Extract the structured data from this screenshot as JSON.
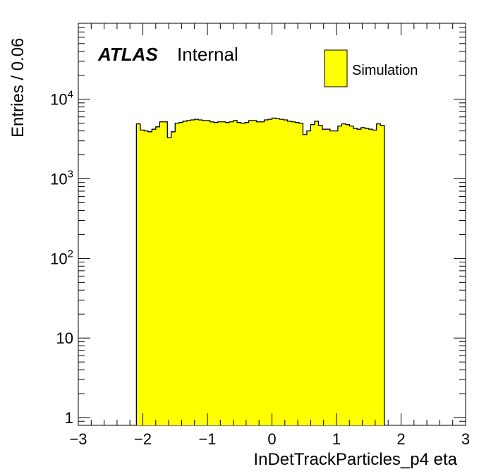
{
  "chart_data": {
    "type": "bar",
    "style": "histogram",
    "xlabel": "InDetTrackParticles_p4 eta",
    "ylabel": "Entries / 0.06",
    "xlim": [
      -3,
      3
    ],
    "ylim": [
      0.8,
      90000
    ],
    "log_y": true,
    "bin_width": 0.06,
    "x_ticks": [
      "−3",
      "−2",
      "−1",
      "0",
      "1",
      "2",
      "3"
    ],
    "x_tick_values": [
      -3,
      -2,
      -1,
      0,
      1,
      2,
      3
    ],
    "y_ticks": [
      {
        "value": 1,
        "base": "1",
        "exp": ""
      },
      {
        "value": 10,
        "base": "10",
        "exp": ""
      },
      {
        "value": 100,
        "base": "10",
        "exp": "2"
      },
      {
        "value": 1000,
        "base": "10",
        "exp": "3"
      },
      {
        "value": 10000,
        "base": "10",
        "exp": "4"
      }
    ],
    "bin_edges_start": -2.1,
    "values": [
      4900,
      4100,
      4000,
      3900,
      4200,
      4500,
      5200,
      5200,
      3300,
      3900,
      5000,
      5100,
      5300,
      5400,
      5500,
      5600,
      5500,
      5400,
      5400,
      5200,
      5100,
      5200,
      5200,
      5100,
      5200,
      5400,
      5100,
      5000,
      5100,
      5400,
      5400,
      5200,
      5200,
      5500,
      5600,
      5800,
      5700,
      5600,
      5500,
      5300,
      5200,
      5100,
      5000,
      3600,
      4000,
      4800,
      5300,
      4700,
      4200,
      4200,
      4000,
      4000,
      4600,
      4900,
      4800,
      4600,
      4300,
      4200,
      4400,
      4300,
      4200,
      4100,
      4900,
      4700
    ],
    "series": [
      {
        "name": "Simulation",
        "color": "#ffff00"
      }
    ],
    "legend_position": "top-right",
    "fill_color": "#ffff00",
    "line_color": "#000000"
  },
  "labels": {
    "experiment": "ATLAS",
    "status": "Internal"
  }
}
